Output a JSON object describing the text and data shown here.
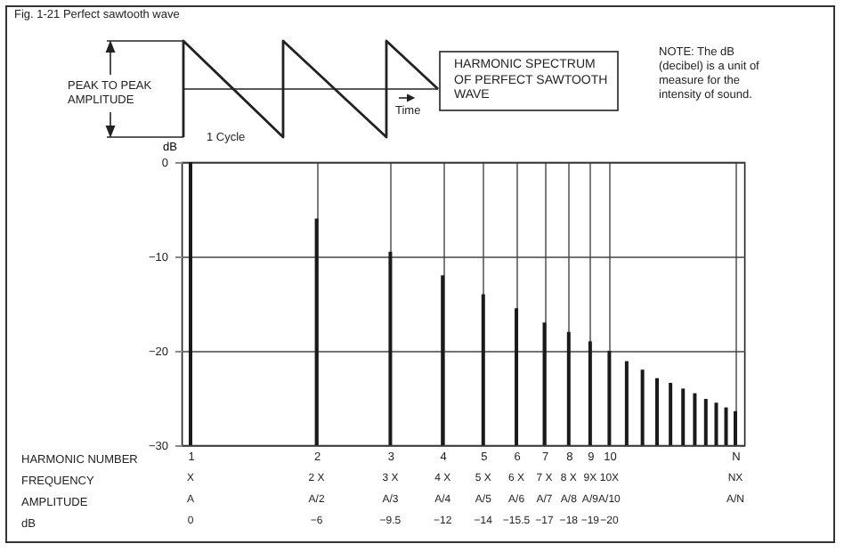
{
  "chart_data": {
    "type": "bar",
    "title": "Fig. 1-21  Perfect sawtooth wave",
    "ylabel": "dB",
    "x": [
      1,
      2,
      3,
      4,
      5,
      6,
      7,
      8,
      9,
      10,
      11,
      12,
      13,
      14,
      15,
      16,
      17,
      18,
      19,
      20
    ],
    "values": [
      30,
      24,
      20.5,
      18,
      16,
      14.5,
      13,
      12,
      11,
      10,
      8.9,
      8,
      7.1,
      6.6,
      6,
      5.5,
      4.9,
      4.5,
      4,
      3.6
    ],
    "base": [
      -30,
      -30,
      -30,
      -30,
      -30,
      -30,
      -30,
      -30,
      -30,
      -30,
      -30,
      -30,
      -30,
      -30,
      -30,
      -30,
      -30,
      -30,
      -30,
      -30
    ],
    "color": "#1a1a1a",
    "log": "x",
    "grid": true,
    "xlim": [
      1,
      20
    ],
    "xticks": [
      1,
      2,
      3,
      4,
      5,
      6,
      7,
      8,
      9,
      10,
      {
        "value": 20,
        "label": "N"
      }
    ],
    "ylim": [
      -30,
      0
    ],
    "yticks": [
      {
        "value": 0,
        "label": "0"
      },
      {
        "value": -10,
        "label": "−10"
      },
      {
        "value": -20,
        "label": "−20"
      },
      {
        "value": -30,
        "label": "−30"
      }
    ],
    "annotations": [
      "PEAK TO PEAK AMPLITUDE",
      "1 Cycle",
      "Time",
      "HARMONIC SPECTRUM OF PERFECT SAWTOOTH WAVE",
      "NOTE: The dB (decibel) is a unit of measure for the intensity of sound.",
      "HARMONIC NUMBER",
      "FREQUENCY",
      "AMPLITUDE",
      "dB",
      "X",
      "2 X",
      "3 X",
      "4 X",
      "5 X",
      "6 X",
      "7 X",
      "8 X",
      "9X",
      "10X",
      "NX",
      "A",
      "A/2",
      "A/3",
      "A/4",
      "A/5",
      "A/6",
      "A/7",
      "A/8",
      "A/9",
      "A/10",
      "A/N",
      "0",
      "−6",
      "−9.5",
      "−12",
      "−14",
      "−15.5",
      "−17",
      "−18",
      "−19",
      "−20"
    ]
  }
}
